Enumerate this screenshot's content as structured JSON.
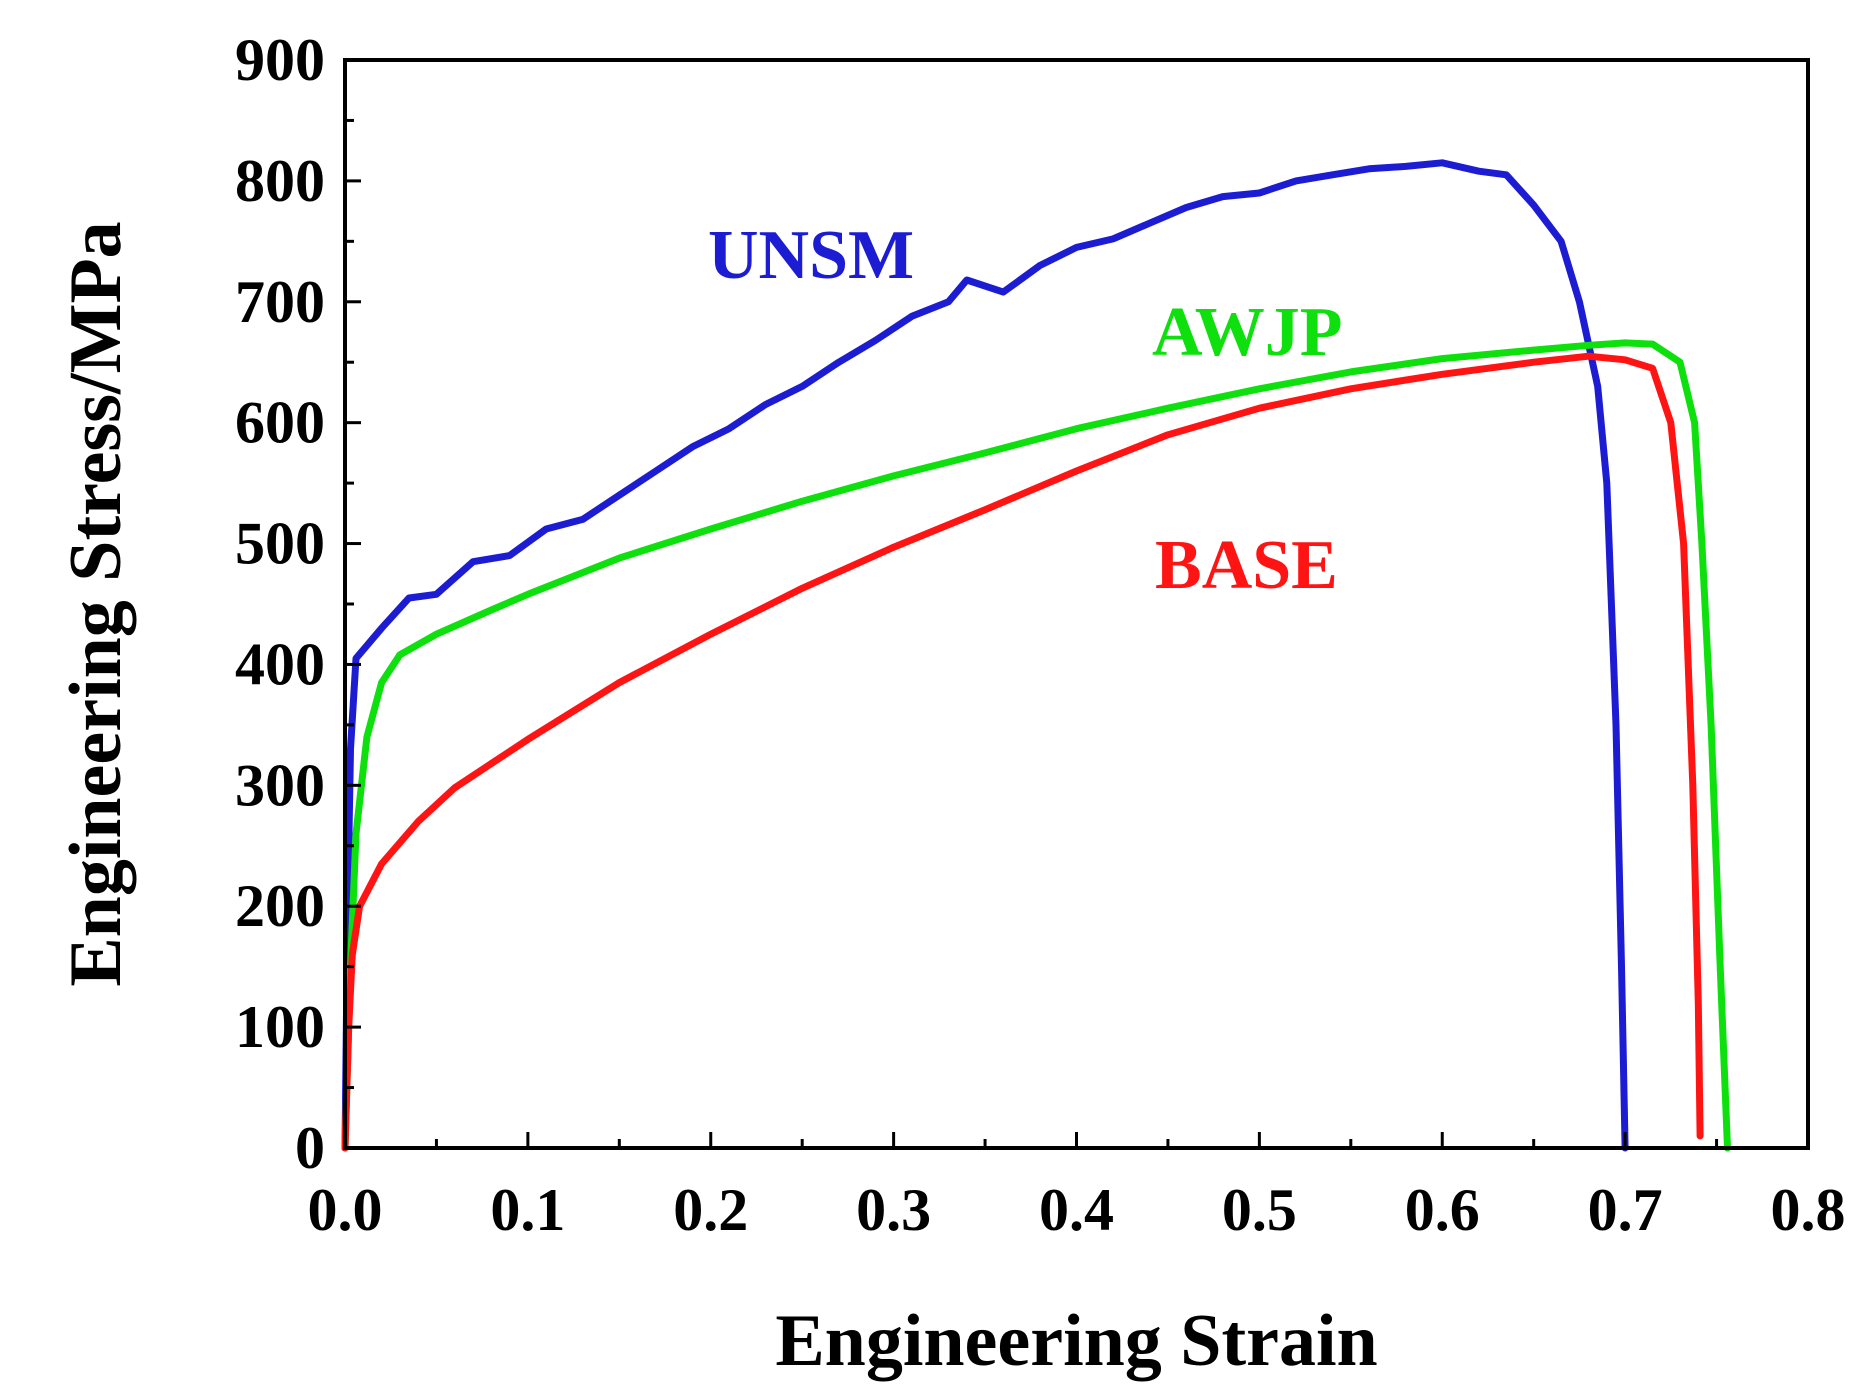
{
  "chart_data": {
    "type": "line",
    "title": "",
    "xlabel": "Engineering Strain",
    "ylabel": "Engineering Stress/MPa",
    "xlim": [
      0.0,
      0.8
    ],
    "ylim": [
      0,
      900
    ],
    "xticks": [
      0.0,
      0.1,
      0.2,
      0.3,
      0.4,
      0.5,
      0.6,
      0.7,
      0.8
    ],
    "xtick_labels": [
      "0.0",
      "0.1",
      "0.2",
      "0.3",
      "0.4",
      "0.5",
      "0.6",
      "0.7",
      "0.8"
    ],
    "yticks": [
      0,
      100,
      200,
      300,
      400,
      500,
      600,
      700,
      800,
      900
    ],
    "ytick_labels": [
      "0",
      "100",
      "200",
      "300",
      "400",
      "500",
      "600",
      "700",
      "800",
      "900"
    ],
    "grid": false,
    "series": [
      {
        "name": "UNSM",
        "label": "UNSM",
        "color": "#1c1cd2",
        "points": [
          [
            0.0,
            0
          ],
          [
            0.0015,
            200
          ],
          [
            0.003,
            330
          ],
          [
            0.006,
            405
          ],
          [
            0.02,
            430
          ],
          [
            0.035,
            455
          ],
          [
            0.05,
            458
          ],
          [
            0.07,
            485
          ],
          [
            0.09,
            490
          ],
          [
            0.11,
            512
          ],
          [
            0.13,
            520
          ],
          [
            0.15,
            540
          ],
          [
            0.17,
            560
          ],
          [
            0.19,
            580
          ],
          [
            0.21,
            595
          ],
          [
            0.23,
            615
          ],
          [
            0.25,
            630
          ],
          [
            0.27,
            650
          ],
          [
            0.29,
            668
          ],
          [
            0.31,
            688
          ],
          [
            0.33,
            700
          ],
          [
            0.34,
            718
          ],
          [
            0.36,
            708
          ],
          [
            0.38,
            730
          ],
          [
            0.4,
            745
          ],
          [
            0.42,
            752
          ],
          [
            0.44,
            765
          ],
          [
            0.46,
            778
          ],
          [
            0.48,
            787
          ],
          [
            0.5,
            790
          ],
          [
            0.52,
            800
          ],
          [
            0.54,
            805
          ],
          [
            0.56,
            810
          ],
          [
            0.58,
            812
          ],
          [
            0.6,
            815
          ],
          [
            0.62,
            808
          ],
          [
            0.635,
            805
          ],
          [
            0.65,
            780
          ],
          [
            0.665,
            750
          ],
          [
            0.675,
            700
          ],
          [
            0.685,
            630
          ],
          [
            0.69,
            550
          ],
          [
            0.695,
            350
          ],
          [
            0.698,
            150
          ],
          [
            0.7,
            0
          ]
        ]
      },
      {
        "name": "AWJP",
        "label": "AWJP",
        "color": "#0ee00e",
        "points": [
          [
            0.0,
            0
          ],
          [
            0.003,
            150
          ],
          [
            0.006,
            260
          ],
          [
            0.012,
            340
          ],
          [
            0.02,
            385
          ],
          [
            0.03,
            408
          ],
          [
            0.05,
            425
          ],
          [
            0.08,
            445
          ],
          [
            0.1,
            458
          ],
          [
            0.15,
            488
          ],
          [
            0.2,
            512
          ],
          [
            0.25,
            535
          ],
          [
            0.3,
            556
          ],
          [
            0.35,
            575
          ],
          [
            0.4,
            595
          ],
          [
            0.45,
            612
          ],
          [
            0.5,
            628
          ],
          [
            0.55,
            642
          ],
          [
            0.6,
            653
          ],
          [
            0.65,
            660
          ],
          [
            0.68,
            664
          ],
          [
            0.7,
            666
          ],
          [
            0.715,
            665
          ],
          [
            0.73,
            650
          ],
          [
            0.738,
            600
          ],
          [
            0.742,
            500
          ],
          [
            0.747,
            350
          ],
          [
            0.752,
            150
          ],
          [
            0.756,
            0
          ]
        ]
      },
      {
        "name": "BASE",
        "label": "BASE",
        "color": "#ff1414",
        "points": [
          [
            0.0,
            0
          ],
          [
            0.002,
            100
          ],
          [
            0.004,
            160
          ],
          [
            0.008,
            200
          ],
          [
            0.02,
            235
          ],
          [
            0.04,
            270
          ],
          [
            0.06,
            298
          ],
          [
            0.08,
            318
          ],
          [
            0.1,
            338
          ],
          [
            0.15,
            385
          ],
          [
            0.2,
            425
          ],
          [
            0.25,
            463
          ],
          [
            0.3,
            497
          ],
          [
            0.35,
            528
          ],
          [
            0.4,
            560
          ],
          [
            0.45,
            590
          ],
          [
            0.5,
            612
          ],
          [
            0.55,
            628
          ],
          [
            0.6,
            640
          ],
          [
            0.65,
            650
          ],
          [
            0.68,
            655
          ],
          [
            0.7,
            652
          ],
          [
            0.715,
            645
          ],
          [
            0.725,
            600
          ],
          [
            0.732,
            500
          ],
          [
            0.737,
            300
          ],
          [
            0.74,
            120
          ],
          [
            0.741,
            10
          ]
        ]
      }
    ],
    "annotations": [
      {
        "text": "UNSM",
        "color": "#1c1cd2"
      },
      {
        "text": "AWJP",
        "color": "#0ee00e"
      },
      {
        "text": "BASE",
        "color": "#ff1414"
      }
    ]
  }
}
